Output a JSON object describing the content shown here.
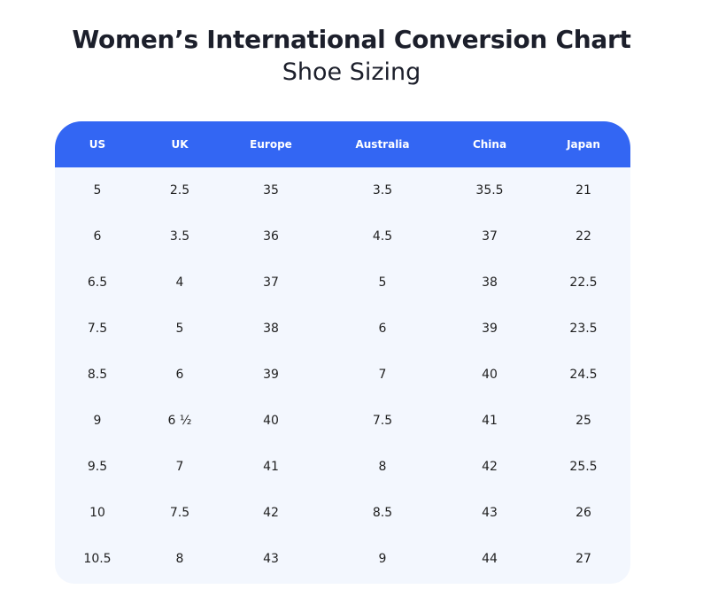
{
  "title": "Women’s International Conversion Chart",
  "subtitle": "Shoe Sizing",
  "table": {
    "headers": [
      "US",
      "UK",
      "Europe",
      "Australia",
      "China",
      "Japan"
    ],
    "rows": [
      [
        "5",
        "2.5",
        "35",
        "3.5",
        "35.5",
        "21"
      ],
      [
        "6",
        "3.5",
        "36",
        "4.5",
        "37",
        "22"
      ],
      [
        "6.5",
        "4",
        "37",
        "5",
        "38",
        "22.5"
      ],
      [
        "7.5",
        "5",
        "38",
        "6",
        "39",
        "23.5"
      ],
      [
        "8.5",
        "6",
        "39",
        "7",
        "40",
        "24.5"
      ],
      [
        "9",
        "6 ½",
        "40",
        "7.5",
        "41",
        "25"
      ],
      [
        "9.5",
        "7",
        "41",
        "8",
        "42",
        "25.5"
      ],
      [
        "10",
        "7.5",
        "42",
        "8.5",
        "43",
        "26"
      ],
      [
        "10.5",
        "8",
        "43",
        "9",
        "44",
        "27"
      ]
    ]
  },
  "colors": {
    "header_bg": "#3366f3",
    "body_bg": "#f3f7fe"
  }
}
